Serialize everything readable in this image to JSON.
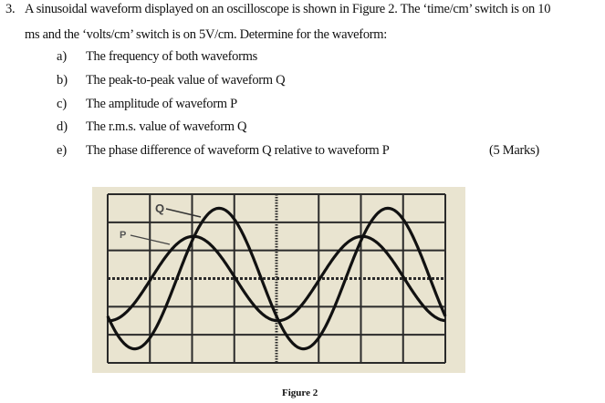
{
  "question": {
    "number": "3.",
    "line1": "A sinusoidal waveform displayed on an oscilloscope is shown in Figure 2. The ‘time/cm’ switch is on 10",
    "line2": "ms and the ‘volts/cm’ switch is on 5V/cm. Determine for the waveform:",
    "items": [
      {
        "letter": "a)",
        "text": "The frequency of both waveforms"
      },
      {
        "letter": "b)",
        "text": "The peak-to-peak value of waveform Q"
      },
      {
        "letter": "c)",
        "text": "The amplitude of waveform P"
      },
      {
        "letter": "d)",
        "text": "The r.m.s. value of waveform Q"
      },
      {
        "letter": "e)",
        "text": "The phase difference of waveform Q relative to waveform P"
      }
    ],
    "marks": "(5 Marks)"
  },
  "figure": {
    "caption": "Figure 2",
    "screen_color": "#e9e4d0",
    "grid": {
      "columns": 8,
      "rows": 6
    },
    "waveforms": [
      {
        "label": "P",
        "amplitude_div": 1.5,
        "period_div": 4,
        "first_peak_div": 2.03
      },
      {
        "label": "Q",
        "amplitude_div": 2.5,
        "period_div": 4,
        "first_peak_div": 2.64
      }
    ]
  }
}
